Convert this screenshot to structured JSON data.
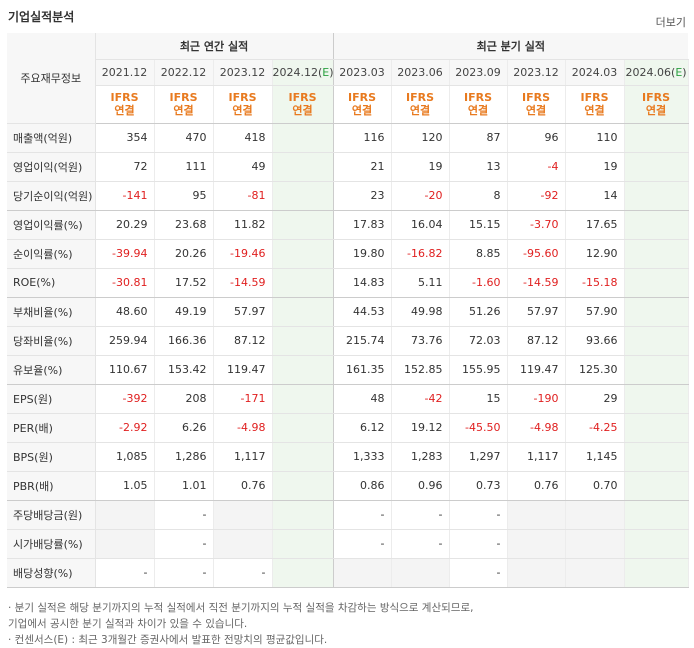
{
  "header": {
    "title": "기업실적분석",
    "more": "더보기"
  },
  "table": {
    "row_header_label": "주요재무정보",
    "annual_group": "최근 연간 실적",
    "quarter_group": "최근 분기 실적",
    "annual_periods": [
      "2021.12",
      "2022.12",
      "2023.12",
      "2024.12(E)"
    ],
    "quarter_periods": [
      "2023.03",
      "2023.06",
      "2023.09",
      "2023.12",
      "2024.03",
      "2024.06(E)"
    ],
    "ifrs_line1": "IFRS",
    "ifrs_line2": "연결",
    "rows": [
      {
        "label": "매출액(억원)",
        "values": [
          "354",
          "470",
          "418",
          "",
          "116",
          "120",
          "87",
          "96",
          "110",
          ""
        ]
      },
      {
        "label": "영업이익(억원)",
        "values": [
          "72",
          "111",
          "49",
          "",
          "21",
          "19",
          "13",
          "-4",
          "19",
          ""
        ]
      },
      {
        "label": "당기순이익(억원)",
        "values": [
          "-141",
          "95",
          "-81",
          "",
          "23",
          "-20",
          "8",
          "-92",
          "14",
          ""
        ]
      },
      {
        "label": "영업이익률(%)",
        "values": [
          "20.29",
          "23.68",
          "11.82",
          "",
          "17.83",
          "16.04",
          "15.15",
          "-3.70",
          "17.65",
          ""
        ]
      },
      {
        "label": "순이익률(%)",
        "values": [
          "-39.94",
          "20.26",
          "-19.46",
          "",
          "19.80",
          "-16.82",
          "8.85",
          "-95.60",
          "12.90",
          ""
        ]
      },
      {
        "label": "ROE(%)",
        "values": [
          "-30.81",
          "17.52",
          "-14.59",
          "",
          "14.83",
          "5.11",
          "-1.60",
          "-14.59",
          "-15.18",
          ""
        ]
      },
      {
        "label": "부채비율(%)",
        "values": [
          "48.60",
          "49.19",
          "57.97",
          "",
          "44.53",
          "49.98",
          "51.26",
          "57.97",
          "57.90",
          ""
        ]
      },
      {
        "label": "당좌비율(%)",
        "values": [
          "259.94",
          "166.36",
          "87.12",
          "",
          "215.74",
          "73.76",
          "72.03",
          "87.12",
          "93.66",
          ""
        ]
      },
      {
        "label": "유보율(%)",
        "values": [
          "110.67",
          "153.42",
          "119.47",
          "",
          "161.35",
          "152.85",
          "155.95",
          "119.47",
          "125.30",
          ""
        ]
      },
      {
        "label": "EPS(원)",
        "values": [
          "-392",
          "208",
          "-171",
          "",
          "48",
          "-42",
          "15",
          "-190",
          "29",
          ""
        ]
      },
      {
        "label": "PER(배)",
        "values": [
          "-2.92",
          "6.26",
          "-4.98",
          "",
          "6.12",
          "19.12",
          "-45.50",
          "-4.98",
          "-4.25",
          ""
        ]
      },
      {
        "label": "BPS(원)",
        "values": [
          "1,085",
          "1,286",
          "1,117",
          "",
          "1,333",
          "1,283",
          "1,297",
          "1,117",
          "1,145",
          ""
        ]
      },
      {
        "label": "PBR(배)",
        "values": [
          "1.05",
          "1.01",
          "0.76",
          "",
          "0.86",
          "0.96",
          "0.73",
          "0.76",
          "0.70",
          ""
        ]
      },
      {
        "label": "주당배당금(원)",
        "values": [
          "",
          "-",
          "",
          "",
          "-",
          "-",
          "-",
          "",
          "",
          ""
        ]
      },
      {
        "label": "시가배당률(%)",
        "values": [
          "",
          "-",
          "",
          "",
          "-",
          "-",
          "-",
          "",
          "",
          ""
        ]
      },
      {
        "label": "배당성향(%)",
        "values": [
          "-",
          "-",
          "-",
          "",
          "",
          "",
          "-",
          "",
          "",
          ""
        ]
      }
    ]
  },
  "notes": [
    "· 분기 실적은 해당 분기까지의 누적 실적에서 직전 분기까지의 누적 실적을 차감하는 방식으로 계산되므로,",
    "   기업에서 공시한 분기 실적과 차이가 있을 수 있습니다.",
    "· 컨센서스(E) : 최근 3개월간 증권사에서 발표한 전망치의 평균값입니다."
  ],
  "colors": {
    "negative": "#e02020",
    "ifrs": "#e87a1f",
    "estimate_bg": "#eff7ee"
  }
}
